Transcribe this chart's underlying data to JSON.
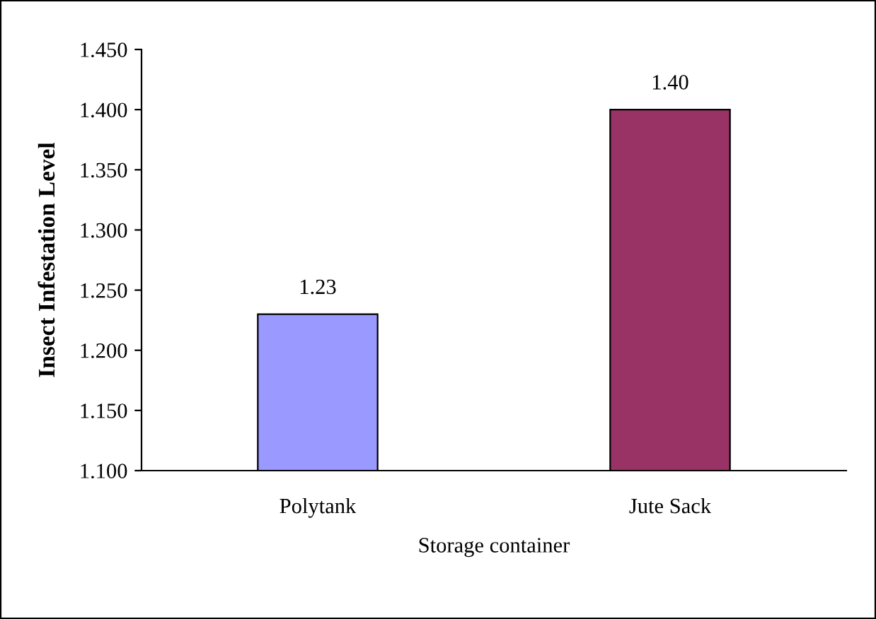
{
  "chart_data": {
    "type": "bar",
    "xlabel": "Storage container",
    "ylabel": "Insect Infestation Level",
    "categories": [
      "Polytank",
      "Jute Sack"
    ],
    "values": [
      1.23,
      1.4
    ],
    "colors": [
      "#9999ff",
      "#993366"
    ],
    "ylim": [
      1.1,
      1.45
    ],
    "yticks": [
      {
        "value": 1.1,
        "label": "1.100"
      },
      {
        "value": 1.15,
        "label": "1.150"
      },
      {
        "value": 1.2,
        "label": "1.200"
      },
      {
        "value": 1.25,
        "label": "1.250"
      },
      {
        "value": 1.3,
        "label": "1.300"
      },
      {
        "value": 1.35,
        "label": "1.350"
      },
      {
        "value": 1.4,
        "label": "1.400"
      },
      {
        "value": 1.45,
        "label": "1.450"
      }
    ],
    "value_labels": [
      "1.23",
      "1.40"
    ],
    "grid": false,
    "legend": false
  }
}
